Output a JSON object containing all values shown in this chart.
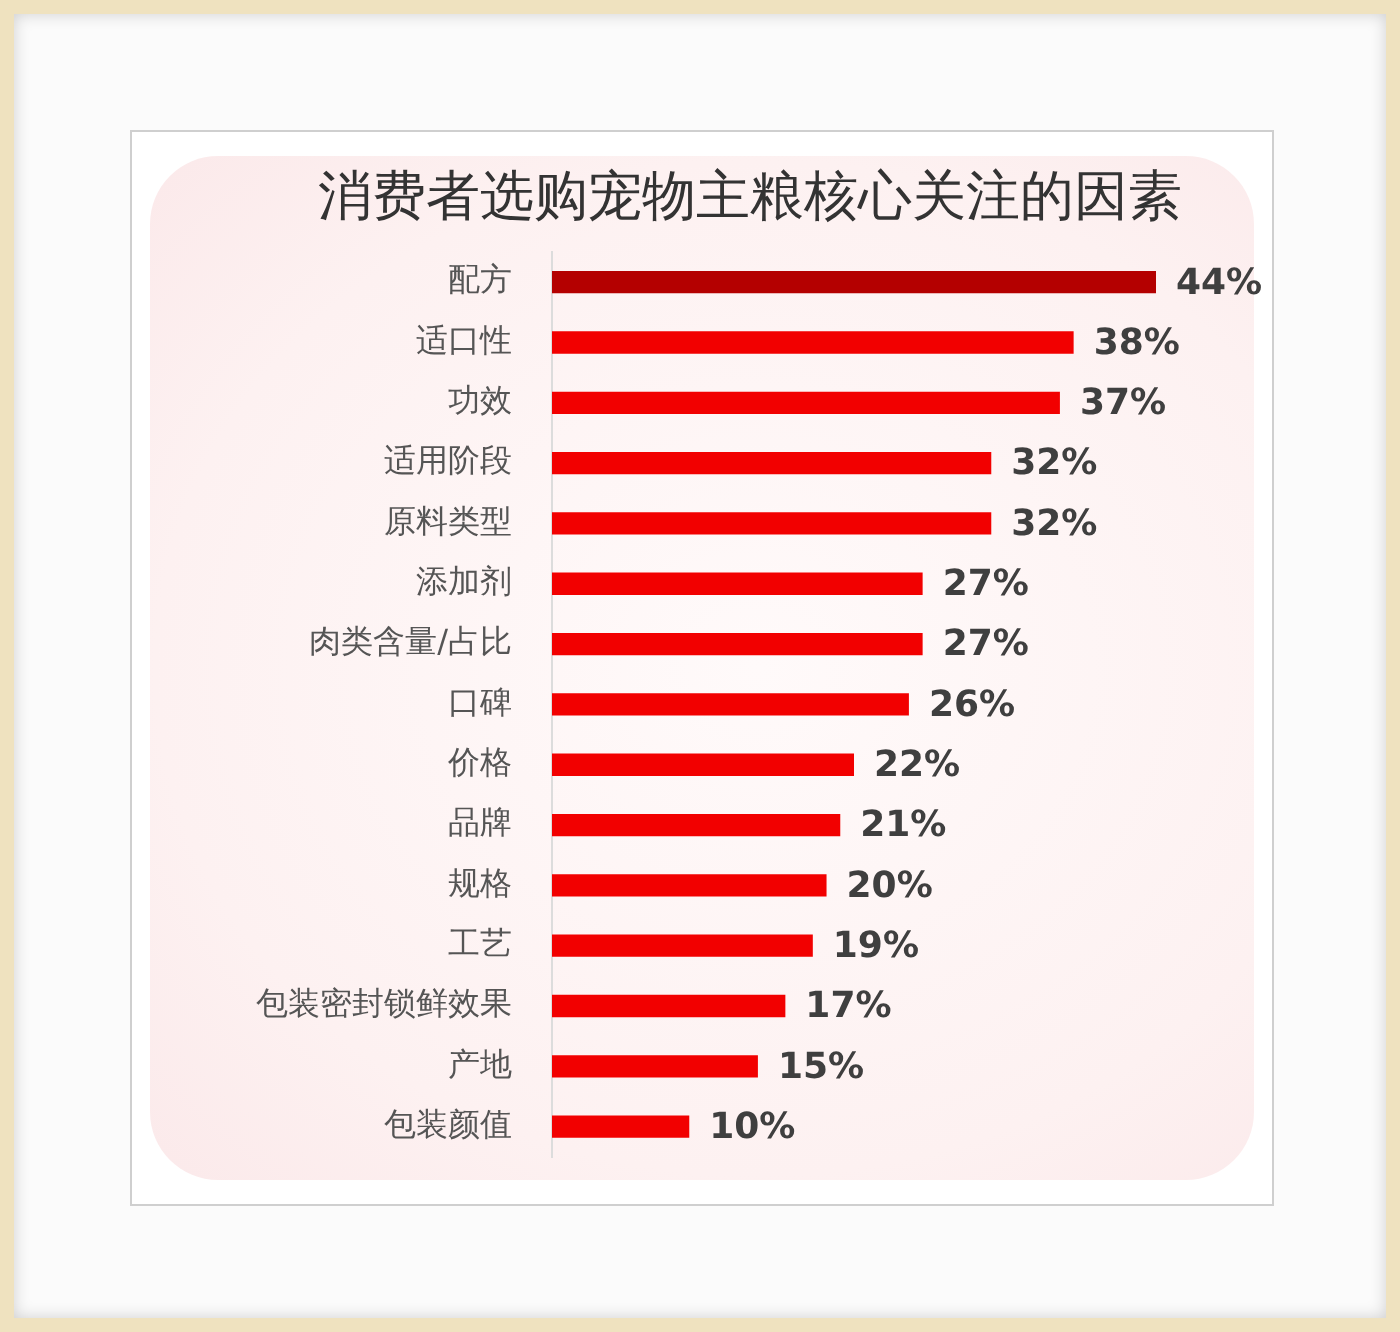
{
  "chart_data": {
    "type": "bar",
    "orientation": "horizontal",
    "title": "消费者选购宠物主粮核心关注的因素",
    "categories": [
      "配方",
      "适口性",
      "功效",
      "适用阶段",
      "原料类型",
      "添加剂",
      "肉类含量/占比",
      "口碑",
      "价格",
      "品牌",
      "规格",
      "工艺",
      "包装密封锁鲜效果",
      "产地",
      "包装颜值"
    ],
    "values": [
      44,
      38,
      37,
      32,
      32,
      27,
      27,
      26,
      22,
      21,
      20,
      19,
      17,
      15,
      10
    ],
    "colors": [
      "#b40000",
      "#f20000",
      "#f20000",
      "#f20000",
      "#f20000",
      "#f20000",
      "#f20000",
      "#f20000",
      "#f20000",
      "#f20000",
      "#f20000",
      "#f20000",
      "#f20000",
      "#f20000",
      "#f20000"
    ],
    "value_labels": [
      "44%",
      "38%",
      "37%",
      "32%",
      "32%",
      "27%",
      "27%",
      "26%",
      "22%",
      "21%",
      "20%",
      "19%",
      "17%",
      "15%",
      "10%"
    ]
  }
}
